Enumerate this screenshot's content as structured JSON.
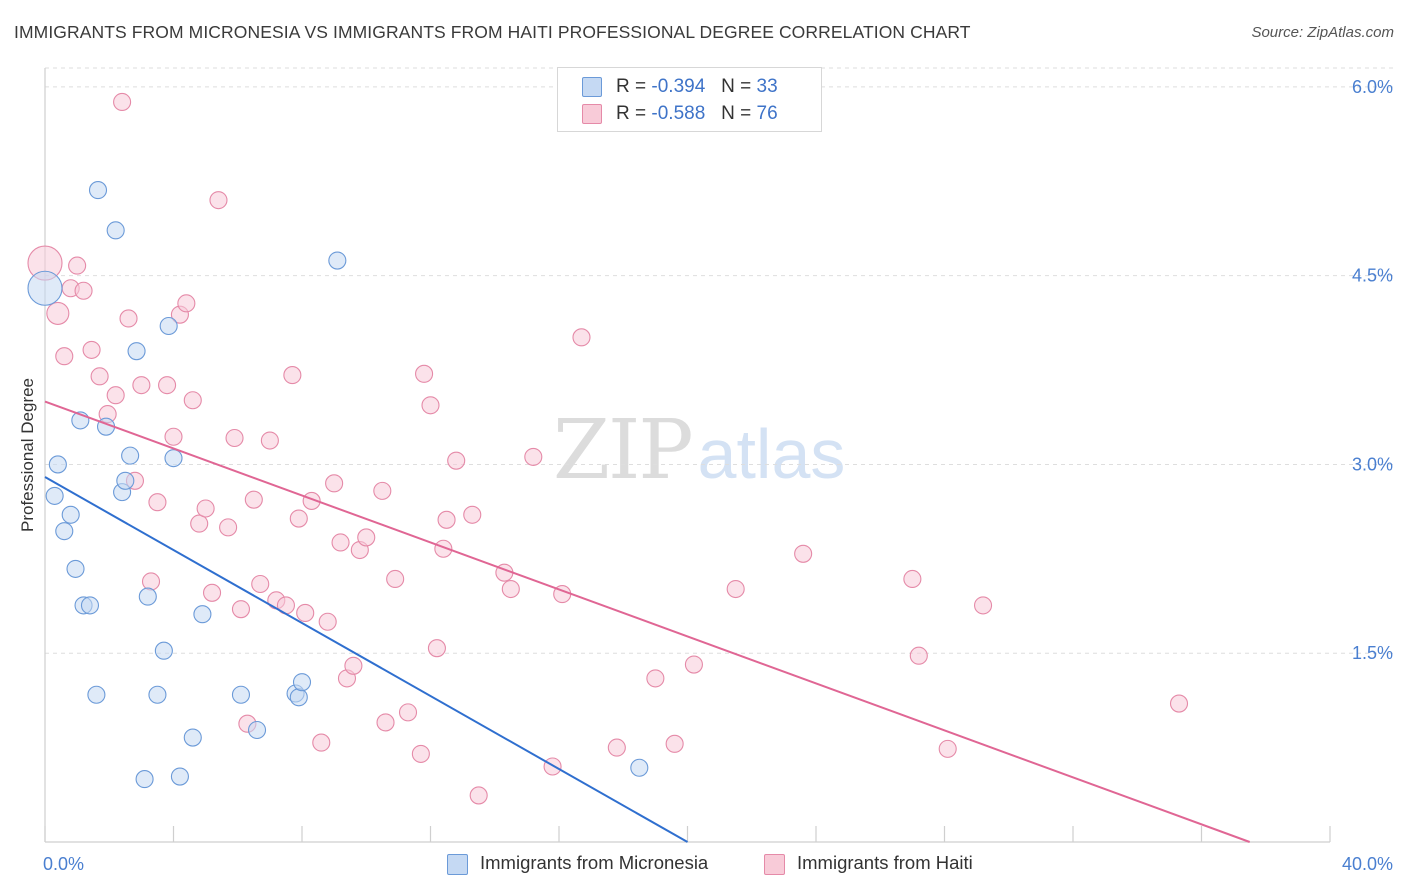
{
  "title": "IMMIGRANTS FROM MICRONESIA VS IMMIGRANTS FROM HAITI PROFESSIONAL DEGREE CORRELATION CHART",
  "source": "Source: ZipAtlas.com",
  "watermark": {
    "zip": "ZIP",
    "atlas": "atlas"
  },
  "legend": {
    "series1": {
      "r_label": "R =",
      "r_value": "-0.394",
      "n_label": "N =",
      "n_value": "33"
    },
    "series2": {
      "r_label": "R =",
      "r_value": "-0.588",
      "n_label": "N =",
      "n_value": "76"
    }
  },
  "chart_data": {
    "type": "scatter",
    "title": "IMMIGRANTS FROM MICRONESIA VS IMMIGRANTS FROM HAITI PROFESSIONAL DEGREE CORRELATION CHART",
    "xlabel": "",
    "ylabel": "Professional Degree",
    "xlim": [
      0,
      40
    ],
    "ylim": [
      0,
      6.15
    ],
    "x_tick_labels": [
      "0.0%",
      "40.0%"
    ],
    "y_ticks": [
      1.5,
      3.0,
      4.5,
      6.0
    ],
    "y_tick_labels": [
      "1.5%",
      "3.0%",
      "4.5%",
      "6.0%"
    ],
    "grid": true,
    "legend_position": "bottom",
    "colors": {
      "micronesia_fill": "#c5d9f3",
      "micronesia_stroke": "#6b9ad8",
      "micronesia_line": "#2f6fcf",
      "haiti_fill": "#f8cbd8",
      "haiti_stroke": "#e58aa8",
      "haiti_line": "#e06694"
    },
    "series": [
      {
        "name": "Immigrants from Micronesia",
        "trend": {
          "x": [
            0.0,
            20.0
          ],
          "y": [
            2.9,
            0.0
          ]
        },
        "points": [
          {
            "x": 0.0,
            "y": 4.4,
            "big": true
          },
          {
            "x": 0.3,
            "y": 2.75
          },
          {
            "x": 0.4,
            "y": 3.0
          },
          {
            "x": 0.6,
            "y": 2.47
          },
          {
            "x": 0.8,
            "y": 2.6
          },
          {
            "x": 0.95,
            "y": 2.17
          },
          {
            "x": 1.1,
            "y": 3.35
          },
          {
            "x": 1.2,
            "y": 1.88
          },
          {
            "x": 1.4,
            "y": 1.88
          },
          {
            "x": 1.6,
            "y": 1.17
          },
          {
            "x": 1.65,
            "y": 5.18
          },
          {
            "x": 1.9,
            "y": 3.3
          },
          {
            "x": 2.2,
            "y": 4.86
          },
          {
            "x": 2.4,
            "y": 2.78
          },
          {
            "x": 2.5,
            "y": 2.87
          },
          {
            "x": 2.65,
            "y": 3.07
          },
          {
            "x": 2.85,
            "y": 3.9
          },
          {
            "x": 3.1,
            "y": 0.5
          },
          {
            "x": 3.2,
            "y": 1.95
          },
          {
            "x": 3.5,
            "y": 1.17
          },
          {
            "x": 3.7,
            "y": 1.52
          },
          {
            "x": 3.85,
            "y": 4.1
          },
          {
            "x": 4.0,
            "y": 3.05
          },
          {
            "x": 4.2,
            "y": 0.52
          },
          {
            "x": 4.6,
            "y": 0.83
          },
          {
            "x": 4.9,
            "y": 1.81
          },
          {
            "x": 6.1,
            "y": 1.17
          },
          {
            "x": 6.6,
            "y": 0.89
          },
          {
            "x": 7.8,
            "y": 1.18
          },
          {
            "x": 7.9,
            "y": 1.15
          },
          {
            "x": 8.0,
            "y": 1.27
          },
          {
            "x": 9.1,
            "y": 4.62
          },
          {
            "x": 18.5,
            "y": 0.59
          }
        ]
      },
      {
        "name": "Immigrants from Haiti",
        "trend": {
          "x": [
            0.0,
            37.5
          ],
          "y": [
            3.5,
            0.0
          ]
        },
        "points": [
          {
            "x": 0.0,
            "y": 4.6,
            "big": true
          },
          {
            "x": 0.4,
            "y": 4.2,
            "mid": true
          },
          {
            "x": 0.6,
            "y": 3.86
          },
          {
            "x": 0.8,
            "y": 4.4
          },
          {
            "x": 1.0,
            "y": 4.58
          },
          {
            "x": 1.2,
            "y": 4.38
          },
          {
            "x": 1.45,
            "y": 3.91
          },
          {
            "x": 1.7,
            "y": 3.7
          },
          {
            "x": 1.95,
            "y": 3.4
          },
          {
            "x": 2.2,
            "y": 3.55
          },
          {
            "x": 2.4,
            "y": 5.88
          },
          {
            "x": 2.6,
            "y": 4.16
          },
          {
            "x": 2.8,
            "y": 2.87
          },
          {
            "x": 3.0,
            "y": 3.63
          },
          {
            "x": 3.3,
            "y": 2.07
          },
          {
            "x": 3.5,
            "y": 2.7
          },
          {
            "x": 3.8,
            "y": 3.63
          },
          {
            "x": 4.0,
            "y": 3.22
          },
          {
            "x": 4.2,
            "y": 4.19
          },
          {
            "x": 4.4,
            "y": 4.28
          },
          {
            "x": 4.6,
            "y": 3.51
          },
          {
            "x": 4.8,
            "y": 2.53
          },
          {
            "x": 5.0,
            "y": 2.65
          },
          {
            "x": 5.2,
            "y": 1.98
          },
          {
            "x": 5.4,
            "y": 5.1
          },
          {
            "x": 5.7,
            "y": 2.5
          },
          {
            "x": 5.9,
            "y": 3.21
          },
          {
            "x": 6.1,
            "y": 1.85
          },
          {
            "x": 6.3,
            "y": 0.94
          },
          {
            "x": 6.5,
            "y": 2.72
          },
          {
            "x": 6.7,
            "y": 2.05
          },
          {
            "x": 7.0,
            "y": 3.19
          },
          {
            "x": 7.2,
            "y": 1.92
          },
          {
            "x": 7.5,
            "y": 1.88
          },
          {
            "x": 7.7,
            "y": 3.71
          },
          {
            "x": 7.9,
            "y": 2.57
          },
          {
            "x": 8.1,
            "y": 1.82
          },
          {
            "x": 8.3,
            "y": 2.71
          },
          {
            "x": 8.6,
            "y": 0.79
          },
          {
            "x": 8.8,
            "y": 1.75
          },
          {
            "x": 9.0,
            "y": 2.85
          },
          {
            "x": 9.2,
            "y": 2.38
          },
          {
            "x": 9.4,
            "y": 1.3
          },
          {
            "x": 9.6,
            "y": 1.4
          },
          {
            "x": 9.8,
            "y": 2.32
          },
          {
            "x": 10.0,
            "y": 2.42
          },
          {
            "x": 10.5,
            "y": 2.79
          },
          {
            "x": 10.6,
            "y": 0.95
          },
          {
            "x": 10.9,
            "y": 2.09
          },
          {
            "x": 11.3,
            "y": 1.03
          },
          {
            "x": 11.7,
            "y": 0.7
          },
          {
            "x": 11.8,
            "y": 3.72
          },
          {
            "x": 12.0,
            "y": 3.47
          },
          {
            "x": 12.2,
            "y": 1.54
          },
          {
            "x": 12.4,
            "y": 2.33
          },
          {
            "x": 12.5,
            "y": 2.56
          },
          {
            "x": 12.8,
            "y": 3.03
          },
          {
            "x": 13.3,
            "y": 2.6
          },
          {
            "x": 13.5,
            "y": 0.37
          },
          {
            "x": 14.3,
            "y": 2.14
          },
          {
            "x": 14.5,
            "y": 2.01
          },
          {
            "x": 15.2,
            "y": 3.06
          },
          {
            "x": 15.8,
            "y": 0.6
          },
          {
            "x": 16.1,
            "y": 1.97
          },
          {
            "x": 16.7,
            "y": 4.01
          },
          {
            "x": 17.8,
            "y": 0.75
          },
          {
            "x": 19.0,
            "y": 1.3
          },
          {
            "x": 19.6,
            "y": 0.78
          },
          {
            "x": 20.2,
            "y": 1.41
          },
          {
            "x": 21.5,
            "y": 2.01
          },
          {
            "x": 23.6,
            "y": 2.29
          },
          {
            "x": 27.0,
            "y": 2.09
          },
          {
            "x": 27.2,
            "y": 1.48
          },
          {
            "x": 28.1,
            "y": 0.74
          },
          {
            "x": 29.2,
            "y": 1.88
          },
          {
            "x": 35.3,
            "y": 1.1
          }
        ]
      }
    ]
  },
  "bottom_legend": {
    "item1": "Immigrants from Micronesia",
    "item2": "Immigrants from Haiti"
  }
}
